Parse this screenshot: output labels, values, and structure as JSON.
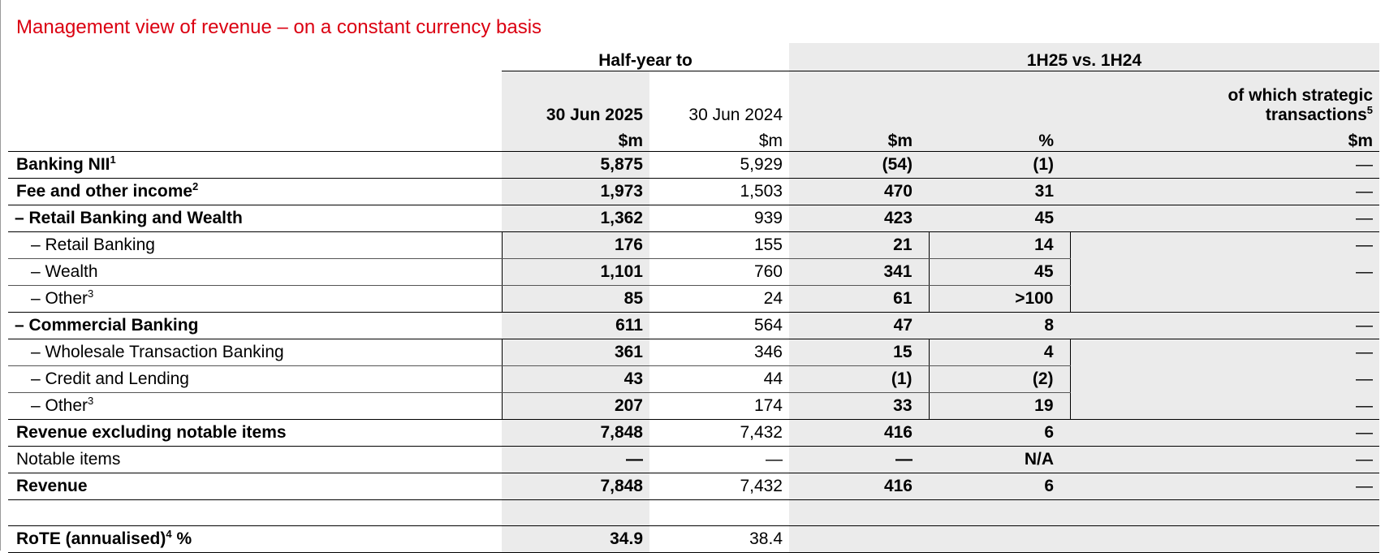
{
  "title": "Management view of revenue – on a constant currency basis",
  "header": {
    "group1": "Half-year to",
    "group2": "1H25 vs. 1H24",
    "col_2025": "30 Jun 2025",
    "col_2024": "30 Jun 2024",
    "strategic_line1": "of which strategic",
    "strategic_line2": "transactions",
    "strategic_sup": "5",
    "unit_sm": "$m",
    "unit_pct": "%"
  },
  "rows": [
    {
      "label": "Banking NII",
      "sup": "1",
      "v2025": "5,875",
      "v2024": "5,929",
      "chg": "(54)",
      "pct": "(1)",
      "strat": "—"
    },
    {
      "label": "Fee and other income",
      "sup": "2",
      "v2025": "1,973",
      "v2024": "1,503",
      "chg": "470",
      "pct": "31",
      "strat": "—"
    },
    {
      "label": "– Retail Banking and Wealth",
      "v2025": "1,362",
      "v2024": "939",
      "chg": "423",
      "pct": "45",
      "strat": "—"
    },
    {
      "label": "– Retail Banking",
      "v2025": "176",
      "v2024": "155",
      "chg": "21",
      "pct": "14",
      "strat": "—"
    },
    {
      "label": "– Wealth",
      "v2025": "1,101",
      "v2024": "760",
      "chg": "341",
      "pct": "45",
      "strat": "—"
    },
    {
      "label": "– Other",
      "sup": "3",
      "v2025": "85",
      "v2024": "24",
      "chg": "61",
      "pct": ">100",
      "strat": ""
    },
    {
      "label": "– Commercial Banking",
      "v2025": "611",
      "v2024": "564",
      "chg": "47",
      "pct": "8",
      "strat": "—"
    },
    {
      "label": "– Wholesale Transaction Banking",
      "v2025": "361",
      "v2024": "346",
      "chg": "15",
      "pct": "4",
      "strat": "—"
    },
    {
      "label": "– Credit and Lending",
      "v2025": "43",
      "v2024": "44",
      "chg": "(1)",
      "pct": "(2)",
      "strat": "—"
    },
    {
      "label": "– Other",
      "sup": "3",
      "v2025": "207",
      "v2024": "174",
      "chg": "33",
      "pct": "19",
      "strat": "—"
    },
    {
      "label": "Revenue excluding notable items",
      "v2025": "7,848",
      "v2024": "7,432",
      "chg": "416",
      "pct": "6",
      "strat": "—"
    },
    {
      "label": "Notable items",
      "v2025": "—",
      "v2024": "—",
      "chg": "—",
      "pct": "N/A",
      "strat": "—"
    },
    {
      "label": "Revenue",
      "v2025": "7,848",
      "v2024": "7,432",
      "chg": "416",
      "pct": "6",
      "strat": "—"
    }
  ],
  "rote": {
    "label": "RoTE (annualised)",
    "sup": "4",
    "unit": "%",
    "v2025": "34.9",
    "v2024": "38.4"
  }
}
